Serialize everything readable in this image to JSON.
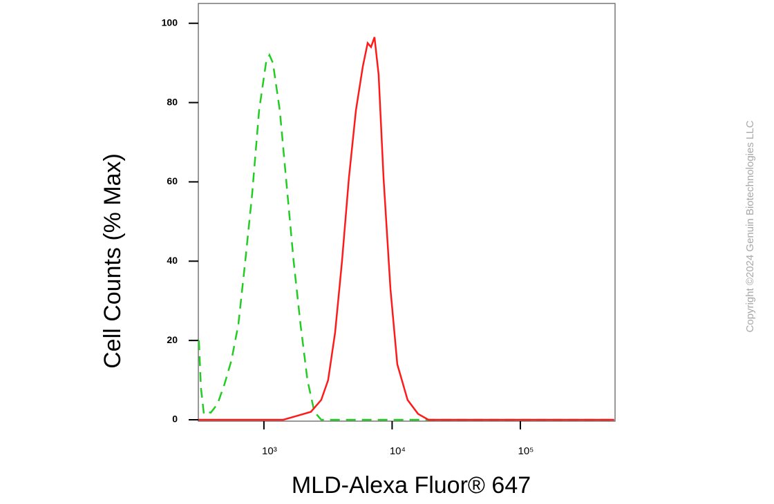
{
  "chart_data": {
    "type": "line",
    "x_label": "MLD-Alexa Fluor® 647",
    "y_label": "Cell Counts (% Max)",
    "watermark": "Copyright ©2024 Genuin Biotechnologies LLC",
    "x_log": true,
    "xlim": [
      308,
      548000
    ],
    "ylim": [
      0,
      105
    ],
    "xticks": [
      {
        "value": 1000,
        "label": "10³"
      },
      {
        "value": 10000,
        "label": "10⁴"
      },
      {
        "value": 100000,
        "label": "10⁵"
      }
    ],
    "yticks": [
      0,
      20,
      40,
      60,
      80,
      100
    ],
    "grid": false,
    "series": [
      {
        "color": "#22cc22",
        "style": "dashed",
        "x": [
          311,
          323,
          340,
          361,
          385,
          435,
          493,
          558,
          632,
          715,
          810,
          917,
          1038,
          1105,
          1175,
          1330,
          1506,
          1705,
          1931,
          2187,
          2475,
          2800,
          4326,
          14970,
          540000
        ],
        "values": [
          20,
          8,
          1.5,
          2,
          1.8,
          4,
          9,
          15,
          24,
          40,
          57,
          78,
          90,
          92,
          90,
          78,
          59,
          40,
          24,
          10,
          2,
          0,
          0,
          0,
          0
        ]
      },
      {
        "color": "#ff1a1a",
        "style": "solid",
        "x": [
          308,
          1416,
          1815,
          2327,
          2800,
          3170,
          3590,
          4065,
          4605,
          5215,
          5900,
          6440,
          6850,
          7290,
          7850,
          8570,
          9700,
          10970,
          13210,
          15930,
          19190,
          540000
        ],
        "values": [
          0,
          0,
          1,
          2,
          5,
          10,
          22,
          40,
          61,
          78,
          89,
          95,
          94,
          96.5,
          87,
          61,
          33,
          14,
          5,
          1.5,
          0,
          0
        ]
      }
    ]
  }
}
